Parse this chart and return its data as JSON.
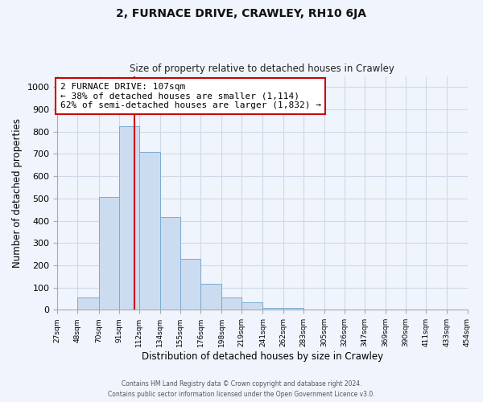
{
  "title": "2, FURNACE DRIVE, CRAWLEY, RH10 6JA",
  "subtitle": "Size of property relative to detached houses in Crawley",
  "xlabel": "Distribution of detached houses by size in Crawley",
  "ylabel": "Number of detached properties",
  "footer_line1": "Contains HM Land Registry data © Crown copyright and database right 2024.",
  "footer_line2": "Contains public sector information licensed under the Open Government Licence v3.0.",
  "bar_edges": [
    27,
    48,
    70,
    91,
    112,
    134,
    155,
    176,
    198,
    219,
    241,
    262,
    283,
    305,
    326,
    347,
    369,
    390,
    411,
    433,
    454
  ],
  "bar_heights": [
    0,
    55,
    505,
    825,
    710,
    415,
    230,
    118,
    55,
    33,
    10,
    10,
    0,
    0,
    0,
    0,
    0,
    0,
    0,
    0
  ],
  "bar_color": "#ccdcf0",
  "bar_edgecolor": "#7aaad0",
  "property_line_x": 107,
  "property_line_color": "#cc0000",
  "annotation_text": "2 FURNACE DRIVE: 107sqm\n← 38% of detached houses are smaller (1,114)\n62% of semi-detached houses are larger (1,832) →",
  "annotation_box_edgecolor": "#cc0000",
  "annotation_box_facecolor": "#ffffff",
  "ylim": [
    0,
    1050
  ],
  "xlim": [
    27,
    454
  ],
  "yticks": [
    0,
    100,
    200,
    300,
    400,
    500,
    600,
    700,
    800,
    900,
    1000
  ],
  "xtick_labels": [
    "27sqm",
    "48sqm",
    "70sqm",
    "91sqm",
    "112sqm",
    "134sqm",
    "155sqm",
    "176sqm",
    "198sqm",
    "219sqm",
    "241sqm",
    "262sqm",
    "283sqm",
    "305sqm",
    "326sqm",
    "347sqm",
    "369sqm",
    "390sqm",
    "411sqm",
    "433sqm",
    "454sqm"
  ],
  "xtick_positions": [
    27,
    48,
    70,
    91,
    112,
    134,
    155,
    176,
    198,
    219,
    241,
    262,
    283,
    305,
    326,
    347,
    369,
    390,
    411,
    433,
    454
  ],
  "grid_color": "#d0d8e8",
  "background_color": "#f0f4fc"
}
